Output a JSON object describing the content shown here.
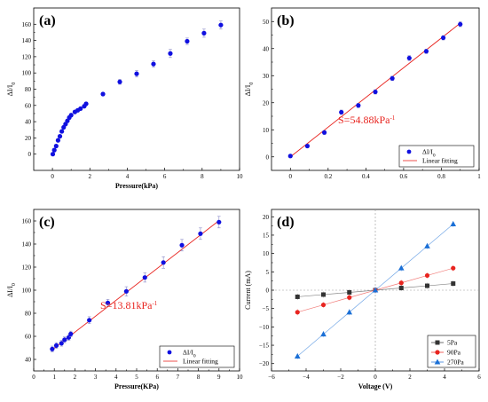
{
  "chart_data": [
    {
      "panel": "(a)",
      "type": "scatter",
      "xlabel": "Pressure(kPa)",
      "ylabel": "ΔI/I0",
      "xlim": [
        -1,
        10
      ],
      "ylim": [
        -20,
        180
      ],
      "xticks": [
        0,
        2,
        4,
        6,
        8,
        10
      ],
      "yticks": [
        0,
        20,
        40,
        60,
        80,
        100,
        120,
        140,
        160
      ],
      "color": "#1010e0",
      "x": [
        0.02,
        0.1,
        0.2,
        0.3,
        0.4,
        0.5,
        0.6,
        0.7,
        0.8,
        0.9,
        1.0,
        1.2,
        1.35,
        1.5,
        1.7,
        1.8,
        2.7,
        3.6,
        4.5,
        5.4,
        6.3,
        7.2,
        8.1,
        9.0
      ],
      "y": [
        0,
        5,
        10,
        17,
        22,
        28,
        33,
        37,
        41,
        45,
        48,
        52,
        54,
        56,
        59,
        62,
        74,
        89,
        99,
        111,
        124,
        139,
        149,
        159
      ],
      "err": [
        2,
        2,
        2,
        2,
        2,
        2,
        2,
        2,
        2,
        2,
        2,
        2,
        2,
        2,
        2,
        2,
        2,
        3,
        4,
        4,
        5,
        4,
        5,
        5
      ]
    },
    {
      "panel": "(b)",
      "type": "scatter",
      "xlabel": "",
      "ylabel": "ΔI/I0",
      "xlim": [
        -0.1,
        1.0
      ],
      "ylim": [
        -5,
        55
      ],
      "xticks": [
        0.0,
        0.2,
        0.4,
        0.6,
        0.8,
        1.0
      ],
      "yticks": [
        0,
        10,
        20,
        30,
        40,
        50
      ],
      "color": "#1010e0",
      "fit_color": "#e8241f",
      "x": [
        0.0,
        0.09,
        0.18,
        0.27,
        0.36,
        0.45,
        0.54,
        0.63,
        0.72,
        0.81,
        0.9
      ],
      "y": [
        0.3,
        4,
        9,
        16.5,
        19,
        24,
        29,
        36.5,
        39,
        44,
        49
      ],
      "err": [
        0.6,
        0.6,
        0.7,
        0.8,
        0.8,
        0.8,
        0.8,
        0.9,
        0.8,
        0.8,
        0.9
      ],
      "fit": {
        "x0": 0.0,
        "x1": 0.9,
        "slope": 54.88,
        "intercept": 0
      },
      "annotation": "S=54.88kPa",
      "annotation_sup": "-1",
      "legend": [
        "ΔI/I0",
        "Linear fitting"
      ],
      "legend_position": "bottom-right"
    },
    {
      "panel": "(c)",
      "type": "scatter",
      "xlabel": "Pressure(KPa)",
      "ylabel": "ΔI/I0",
      "xlim": [
        0,
        10
      ],
      "ylim": [
        30,
        170
      ],
      "xticks": [
        0,
        1,
        2,
        3,
        4,
        5,
        6,
        7,
        8,
        9,
        10
      ],
      "yticks": [
        40,
        60,
        80,
        100,
        120,
        140,
        160
      ],
      "color": "#1010e0",
      "fit_color": "#e8241f",
      "x": [
        0.9,
        1.1,
        1.35,
        1.5,
        1.7,
        1.8,
        2.7,
        3.6,
        4.5,
        5.4,
        6.3,
        7.2,
        8.1,
        9.0
      ],
      "y": [
        49,
        52,
        54,
        57,
        59,
        62,
        74,
        89,
        99,
        111,
        124,
        139,
        149,
        159
      ],
      "err": [
        2.5,
        2.5,
        2.5,
        2.5,
        2.5,
        2.5,
        3,
        3,
        4,
        4,
        5,
        5,
        5,
        5
      ],
      "fit": {
        "x0": 0.9,
        "x1": 9.0,
        "slope": 13.81,
        "intercept": 36
      },
      "annotation": "S=13.81kPa",
      "annotation_sup": "-1",
      "legend": [
        "ΔI/I0",
        "Linear fitting"
      ],
      "legend_position": "bottom-right"
    },
    {
      "panel": "(d)",
      "type": "line",
      "xlabel": "Voltage (V)",
      "ylabel": "Current (mA)",
      "xlim": [
        -6,
        6
      ],
      "ylim": [
        -22,
        22
      ],
      "xticks": [
        -6,
        -4,
        -2,
        0,
        2,
        4,
        6
      ],
      "yticks": [
        -20,
        -15,
        -10,
        -5,
        0,
        5,
        10,
        15,
        20
      ],
      "x": [
        -4.5,
        -3.0,
        -1.5,
        0.0,
        1.5,
        3.0,
        4.5
      ],
      "series": [
        {
          "name": "5Pa",
          "marker": "square",
          "color": "#333333",
          "values": [
            -1.8,
            -1.2,
            -0.6,
            0,
            0.6,
            1.2,
            1.8
          ]
        },
        {
          "name": "90Pa",
          "marker": "circle",
          "color": "#e8241f",
          "values": [
            -6,
            -4,
            -2,
            0,
            2,
            4,
            6
          ]
        },
        {
          "name": "270Pa",
          "marker": "triangle",
          "color": "#1a6fd6",
          "values": [
            -18,
            -12,
            -6,
            0,
            6,
            12,
            18
          ]
        }
      ],
      "legend_position": "bottom-right"
    }
  ]
}
